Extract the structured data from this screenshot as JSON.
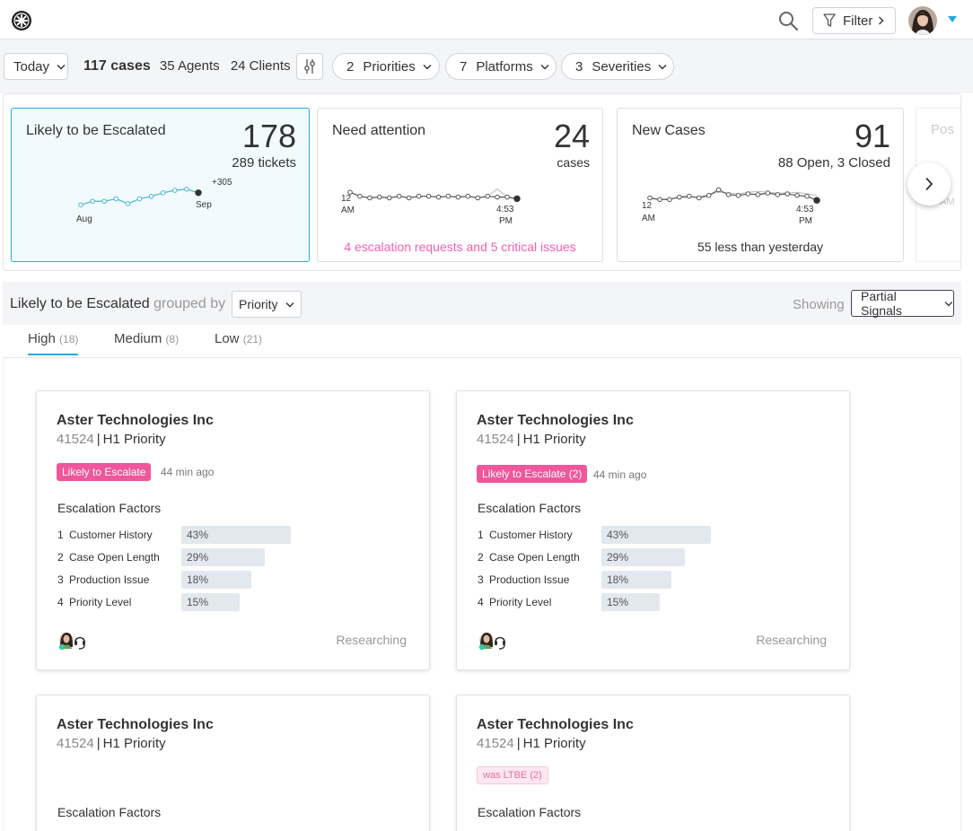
{
  "header": {
    "filter_label": "Filter"
  },
  "filters": {
    "today_label": "Today",
    "cases": "117 cases",
    "agents": "35 Agents",
    "clients": "24 Clients",
    "pills": [
      {
        "num": "2",
        "label": "Priorities"
      },
      {
        "num": "7",
        "label": "Platforms"
      },
      {
        "num": "3",
        "label": "Severities"
      }
    ]
  },
  "summary_cards": {
    "escalated": {
      "title": "Likely to be Escalated",
      "value": "178",
      "sub": "289 tickets",
      "delta": "+305",
      "start_label": "Aug",
      "end_label": "Sep",
      "trend": [
        2,
        5,
        5,
        7,
        3,
        7,
        9,
        12,
        14,
        15,
        12
      ]
    },
    "attention": {
      "title": "Need attention",
      "value": "24",
      "unit": "cases",
      "start_label_1": "12",
      "start_label_2": "AM",
      "end_label_1": "4:53",
      "end_label_2": "PM",
      "footer": "4 escalation requests and 5 critical issues",
      "trend": [
        12,
        7,
        5,
        6,
        5,
        7,
        5,
        7,
        7,
        6,
        7,
        6,
        7,
        5,
        7,
        6,
        6,
        4
      ]
    },
    "new_cases": {
      "title": "New Cases",
      "value": "91",
      "sub": "88 Open, 3 Closed",
      "start_label_1": "12",
      "start_label_2": "AM",
      "end_label_1": "4:53",
      "end_label_2": "PM",
      "footer": "55 less than yesterday",
      "trend": [
        5,
        3,
        3,
        6,
        7,
        5,
        8,
        15,
        9,
        8,
        10,
        9,
        11,
        9,
        10,
        8,
        7,
        2
      ]
    },
    "ghost_title": "Pos",
    "ghost_sub": "AM"
  },
  "grouping": {
    "title": "Likely to be Escalated",
    "grouped_by": "grouped by",
    "group_value": "Priority",
    "showing_label": "Showing",
    "signals_value": "Partial Signals"
  },
  "tabs": [
    {
      "label": "High",
      "count": "(18)"
    },
    {
      "label": "Medium",
      "count": "(8)"
    },
    {
      "label": "Low",
      "count": "(21)"
    }
  ],
  "colors": {
    "accent": "#27a8e0",
    "pink": "#f060b0",
    "badge": "#f0569b"
  },
  "cases": [
    {
      "company": "Aster Technologies Inc",
      "id": "41524",
      "priority": "H1 Priority",
      "badge": "Likely to Escalate",
      "ago": "44 min ago",
      "factors_title": "Escalation Factors",
      "factors": [
        {
          "idx": "1",
          "name": "Customer History",
          "pct": "43%",
          "value": 43
        },
        {
          "idx": "2",
          "name": "Case Open Length",
          "pct": "29%",
          "value": 29
        },
        {
          "idx": "3",
          "name": "Production Issue",
          "pct": "18%",
          "value": 18
        },
        {
          "idx": "4",
          "name": "Priority Level",
          "pct": "15%",
          "value": 15
        }
      ],
      "status": "Researching"
    },
    {
      "company": "Aster Technologies Inc",
      "id": "41524",
      "priority": "H1 Priority",
      "badge": "Likely to Escalate (2)",
      "ago": "44 min ago",
      "factors_title": "Escalation Factors",
      "factors": [
        {
          "idx": "1",
          "name": "Customer History",
          "pct": "43%",
          "value": 43
        },
        {
          "idx": "2",
          "name": "Case Open Length",
          "pct": "29%",
          "value": 29
        },
        {
          "idx": "3",
          "name": "Production Issue",
          "pct": "18%",
          "value": 18
        },
        {
          "idx": "4",
          "name": "Priority Level",
          "pct": "15%",
          "value": 15
        }
      ],
      "status": "Researching"
    },
    {
      "company": "Aster Technologies Inc",
      "id": "41524",
      "priority": "H1 Priority",
      "factors_title": "Escalation Factors"
    },
    {
      "company": "Aster Technologies Inc",
      "id": "41524",
      "priority": "H1 Priority",
      "badge": "was LTBE (2)",
      "factors_title": "Escalation Factors"
    }
  ]
}
